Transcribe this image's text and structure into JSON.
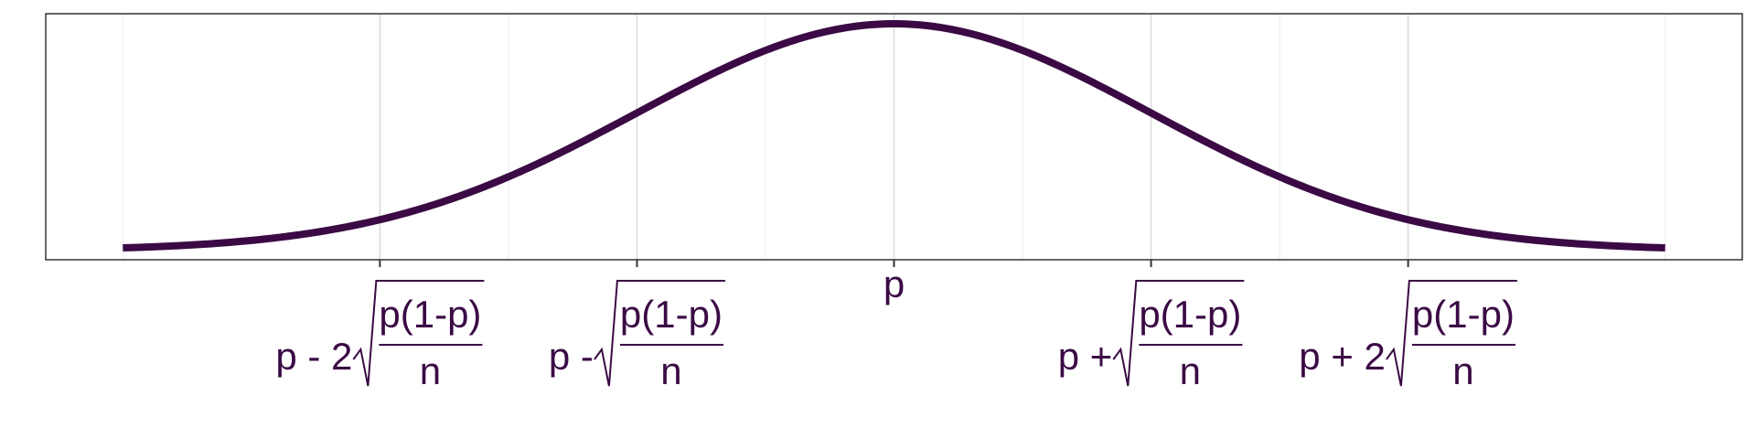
{
  "chart_data": {
    "type": "line",
    "title": "",
    "xlabel": "",
    "ylabel": "",
    "xlim": [
      -3.3,
      3.3
    ],
    "x_range": [
      -3,
      3
    ],
    "grid": true,
    "major_gridlines_x": [
      -2,
      -1,
      0,
      1,
      2
    ],
    "minor_gridlines_x": [
      -3,
      -1.5,
      -0.5,
      0.5,
      1.5,
      3
    ],
    "series": [
      {
        "curve": "normal-density",
        "mean": 0,
        "sd": 1,
        "color": "#3b0a45"
      }
    ],
    "tick_labels": [
      {
        "x": -2,
        "pre": "p - 2",
        "num": "p(1-p)",
        "den": "n"
      },
      {
        "x": -1,
        "pre": "p - ",
        "num": "p(1-p)",
        "den": "n"
      },
      {
        "x": 0,
        "label": "p"
      },
      {
        "x": 1,
        "pre": "p + ",
        "num": "p(1-p)",
        "den": "n"
      },
      {
        "x": 2,
        "pre": "p + 2",
        "num": "p(1-p)",
        "den": "n"
      }
    ],
    "colors": {
      "curve": "#3b0a45",
      "text": "#3b0a45",
      "grid_major": "#dedede",
      "grid_minor": "#eeeeee",
      "border": "#333333"
    }
  }
}
